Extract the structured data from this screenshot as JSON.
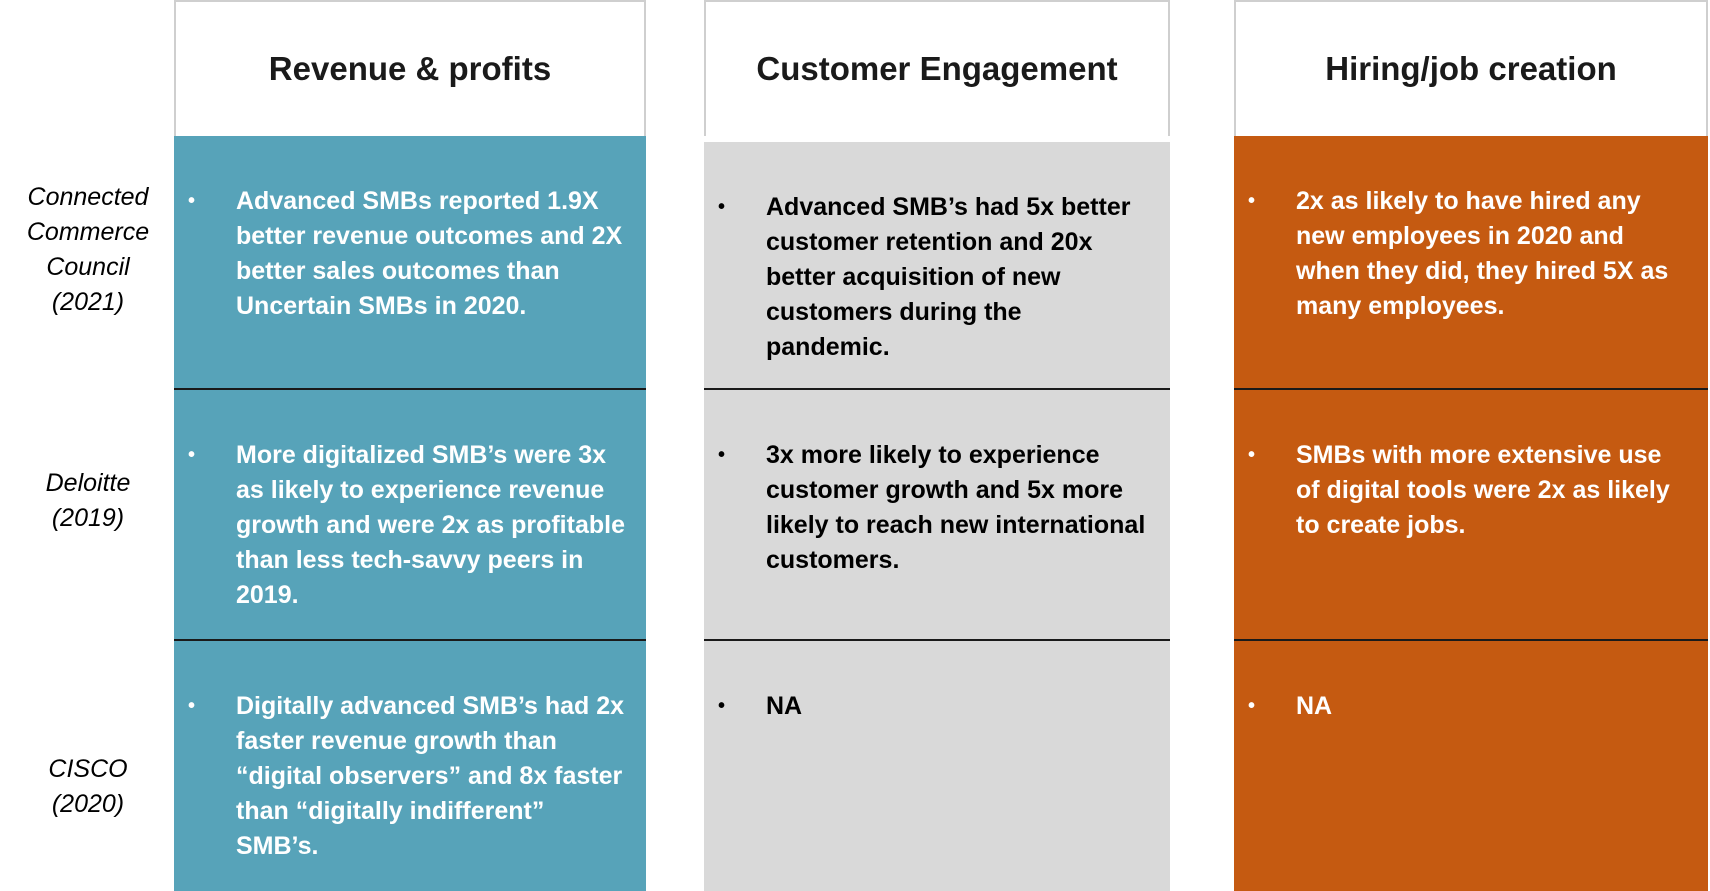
{
  "columns": [
    {
      "header": "Revenue & profits"
    },
    {
      "header": "Customer Engagement"
    },
    {
      "header": "Hiring/job creation"
    }
  ],
  "rows": [
    {
      "label_lines": [
        "Connected",
        "Commerce",
        "Council",
        "(2021)"
      ],
      "cells": [
        "Advanced SMBs reported 1.9X better revenue outcomes and 2X better sales outcomes than Uncertain SMBs in 2020.",
        "Advanced SMB’s had 5x better customer retention and 20x better acquisition of new customers during the pandemic.",
        "2x as likely to have hired any new employees in 2020 and when they did, they hired 5X as many employees."
      ]
    },
    {
      "label_lines": [
        "Deloitte",
        "(2019)"
      ],
      "cells": [
        "More digitalized SMB’s  were 3x as likely to experience revenue growth and were 2x as profitable than less tech-savvy peers in 2019.",
        "3x more likely to experience customer growth and 5x more likely to reach new international customers.",
        "SMBs with more extensive use of digital tools were 2x as likely to create jobs."
      ]
    },
    {
      "label_lines": [
        "CISCO",
        "(2020)"
      ],
      "cells": [
        "Digitally advanced SMB’s had 2x faster revenue growth than “digital observers” and 8x faster than “digitally indifferent” SMB’s.",
        "NA",
        "NA"
      ]
    }
  ],
  "bullet": "•",
  "colors": {
    "revenue": "#57a3b9",
    "customer": "#d9d9d9",
    "hiring": "#c55a11"
  }
}
